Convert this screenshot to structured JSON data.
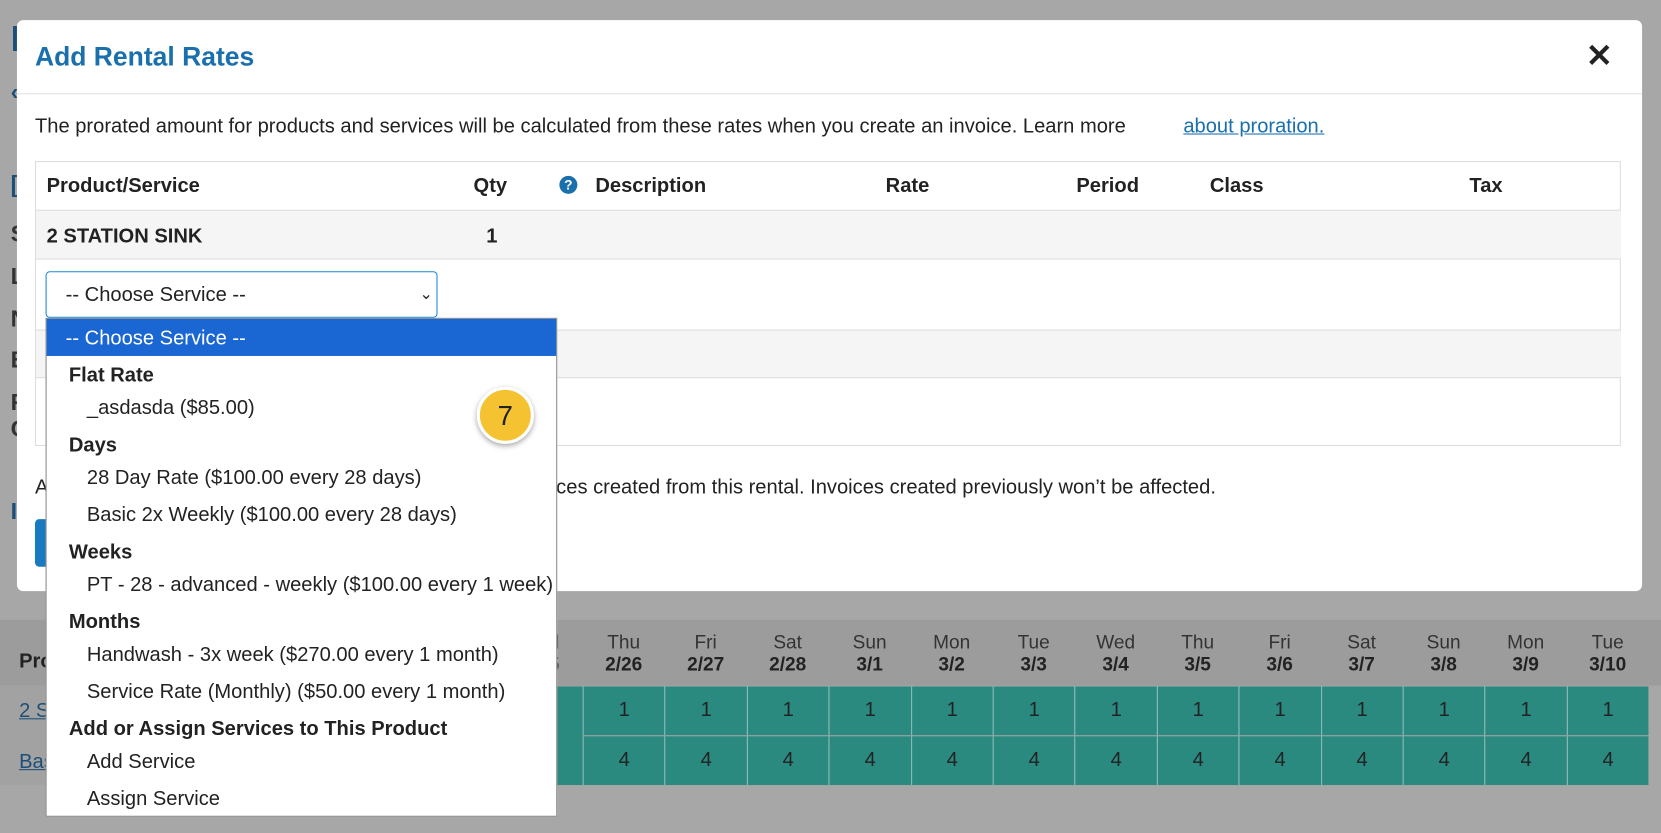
{
  "background": {
    "side_letters": [
      "I",
      "‹",
      "[",
      "S",
      "L",
      "N",
      "E",
      "R",
      "C",
      "I"
    ],
    "calendar": {
      "partial_header": [
        "d",
        "5"
      ],
      "product_header": "Pro",
      "product_links": [
        "2 S",
        "Bas"
      ],
      "days": [
        {
          "day": "Thu",
          "date": "2/26"
        },
        {
          "day": "Fri",
          "date": "2/27"
        },
        {
          "day": "Sat",
          "date": "2/28"
        },
        {
          "day": "Sun",
          "date": "3/1"
        },
        {
          "day": "Mon",
          "date": "3/2"
        },
        {
          "day": "Tue",
          "date": "3/3"
        },
        {
          "day": "Wed",
          "date": "3/4"
        },
        {
          "day": "Thu",
          "date": "3/5"
        },
        {
          "day": "Fri",
          "date": "3/6"
        },
        {
          "day": "Sat",
          "date": "3/7"
        },
        {
          "day": "Sun",
          "date": "3/8"
        },
        {
          "day": "Mon",
          "date": "3/9"
        },
        {
          "day": "Tue",
          "date": "3/10"
        }
      ],
      "rows": [
        [
          1,
          1,
          1,
          1,
          1,
          1,
          1,
          1,
          1,
          1,
          1,
          1,
          1
        ],
        [
          4,
          4,
          4,
          4,
          4,
          4,
          4,
          4,
          4,
          4,
          4,
          4,
          4
        ]
      ]
    }
  },
  "modal": {
    "title": "Add Rental Rates",
    "close": "✕",
    "intro": "The prorated amount for products and services will be calculated from these rates when you create an invoice. Learn more",
    "intro_link": "about proration.",
    "table": {
      "headers": [
        "Product/Service",
        "Qty",
        "Description",
        "Rate",
        "Period",
        "Class",
        "Tax"
      ],
      "help_icon": "?",
      "rows": [
        [
          "2 STATION SINK",
          "1"
        ]
      ]
    },
    "select": {
      "value": "-- Choose Service --"
    },
    "footer_start": "A",
    "footer_rest": "ces created from this rental. Invoices created previously won’t be affected."
  },
  "dropdown": {
    "selected": "-- Choose Service --",
    "groups": [
      {
        "label": "Flat Rate",
        "options": [
          "_asdasda ($85.00)"
        ]
      },
      {
        "label": "Days",
        "options": [
          "28 Day Rate ($100.00 every 28 days)",
          "Basic 2x Weekly ($100.00 every 28 days)"
        ]
      },
      {
        "label": "Weeks",
        "options": [
          "PT - 28 - advanced - weekly ($100.00 every 1 week)"
        ]
      },
      {
        "label": "Months",
        "options": [
          "Handwash - 3x week ($270.00 every 1 month)",
          "Service Rate (Monthly) ($50.00 every 1 month)"
        ]
      },
      {
        "label": "Add or Assign Services to This Product",
        "options": [
          "Add Service",
          "Assign Service"
        ]
      }
    ]
  },
  "step_badge": "7"
}
